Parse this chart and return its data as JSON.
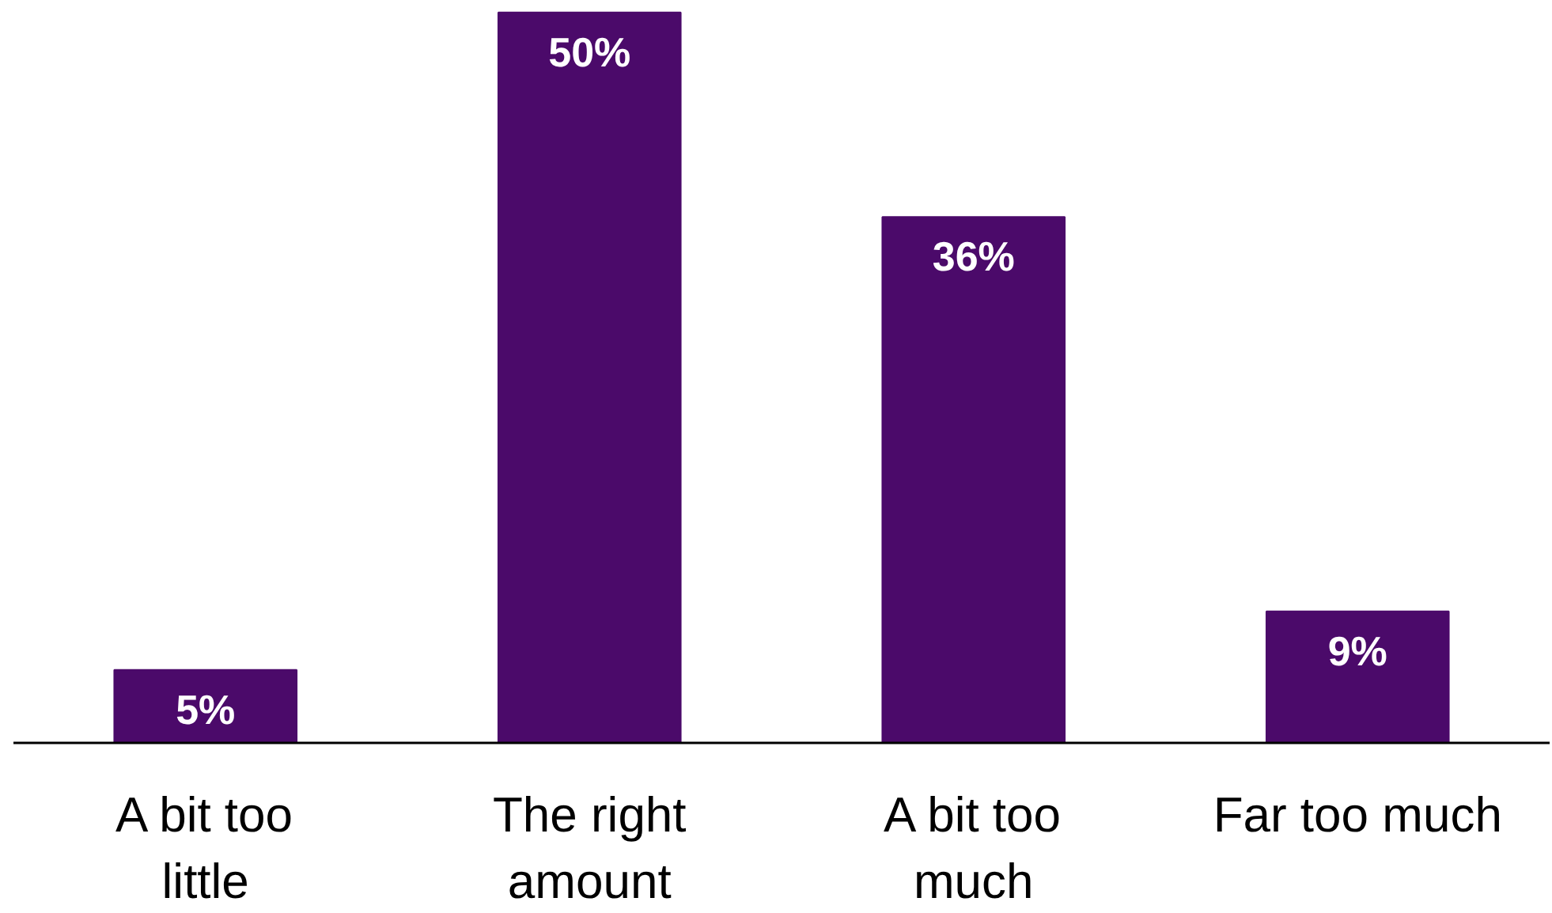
{
  "chart_data": {
    "type": "bar",
    "categories": [
      "A bit too little",
      "The right amount",
      "A bit too much",
      "Far too much"
    ],
    "values": [
      5,
      50,
      36,
      9
    ],
    "color": "#4b0a6a",
    "data_labels": true,
    "value_labels": [
      "5%",
      "50%",
      "36%",
      "9%"
    ],
    "grid": false
  }
}
